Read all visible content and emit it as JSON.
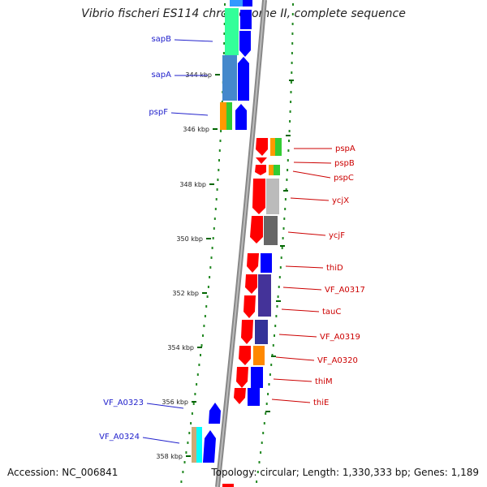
{
  "title": "Vibrio fischeri ES114 chromosome II, complete sequence",
  "footer": {
    "accession": "Accession: NC_006841",
    "summary": "Topology: circular; Length: 1,330,333 bp; Genes: 1,189"
  },
  "ticks": [
    "344 kbp",
    "346 kbp",
    "348 kbp",
    "350 kbp",
    "352 kbp",
    "354 kbp",
    "356 kbp",
    "358 kbp"
  ],
  "left_genes": [
    {
      "label": "sapB",
      "color": "#2222cc"
    },
    {
      "label": "sapA",
      "color": "#2222cc"
    },
    {
      "label": "pspF",
      "color": "#2222cc"
    },
    {
      "label": "VF_A0323",
      "color": "#2222cc"
    },
    {
      "label": "VF_A0324",
      "color": "#2222cc"
    }
  ],
  "right_genes": [
    {
      "label": "pspA",
      "color": "#cc0000"
    },
    {
      "label": "pspB",
      "color": "#cc0000"
    },
    {
      "label": "pspC",
      "color": "#cc0000"
    },
    {
      "label": "ycjX",
      "color": "#cc0000"
    },
    {
      "label": "ycjF",
      "color": "#cc0000"
    },
    {
      "label": "thiD",
      "color": "#cc0000"
    },
    {
      "label": "VF_A0317",
      "color": "#cc0000"
    },
    {
      "label": "tauC",
      "color": "#cc0000"
    },
    {
      "label": "VF_A0319",
      "color": "#cc0000"
    },
    {
      "label": "VF_A0320",
      "color": "#cc0000"
    },
    {
      "label": "thiM",
      "color": "#cc0000"
    },
    {
      "label": "thiE",
      "color": "#cc0000"
    }
  ],
  "colors": {
    "forward": "#0000ff",
    "reverse": "#ff0000",
    "backbone": "#888888",
    "tick": "#006600"
  }
}
